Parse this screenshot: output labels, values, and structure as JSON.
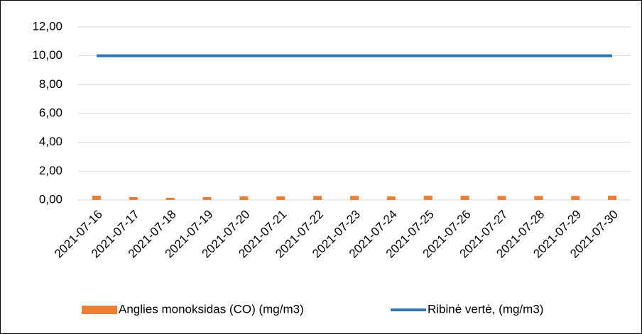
{
  "chart_data": {
    "type": "bar",
    "categories": [
      "2021-07-16",
      "2021-07-17",
      "2021-07-18",
      "2021-07-19",
      "2021-07-20",
      "2021-07-21",
      "2021-07-22",
      "2021-07-23",
      "2021-07-24",
      "2021-07-25",
      "2021-07-26",
      "2021-07-27",
      "2021-07-28",
      "2021-07-29",
      "2021-07-30"
    ],
    "series": [
      {
        "name": "Anglies monoksidas (CO) (mg/m3)",
        "type": "bar",
        "color": "#ed7d31",
        "values": [
          0.3,
          0.2,
          0.15,
          0.2,
          0.25,
          0.25,
          0.28,
          0.28,
          0.25,
          0.3,
          0.3,
          0.28,
          0.28,
          0.28,
          0.3
        ]
      },
      {
        "name": "Ribinė vertė, (mg/m3)",
        "type": "line",
        "color": "#2e75b6",
        "values": [
          10,
          10,
          10,
          10,
          10,
          10,
          10,
          10,
          10,
          10,
          10,
          10,
          10,
          10,
          10
        ]
      }
    ],
    "ylim": [
      0,
      12
    ],
    "yticks": [
      {
        "value": 0,
        "label": "0,00"
      },
      {
        "value": 2,
        "label": "2,00"
      },
      {
        "value": 4,
        "label": "4,00"
      },
      {
        "value": 6,
        "label": "6,00"
      },
      {
        "value": 8,
        "label": "8,00"
      },
      {
        "value": 10,
        "label": "10,00"
      },
      {
        "value": 12,
        "label": "12,00"
      }
    ],
    "grid": true,
    "legend": "bottom"
  }
}
